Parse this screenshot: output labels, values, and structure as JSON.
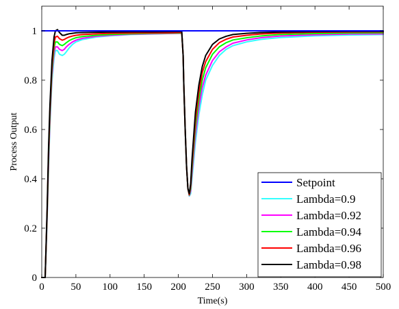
{
  "chart_data": {
    "type": "line",
    "title": "",
    "xlabel": "Time(s)",
    "ylabel": "Process Output",
    "xlim": [
      0,
      500
    ],
    "ylim": [
      0,
      1.1
    ],
    "xticks": [
      0,
      50,
      100,
      150,
      200,
      250,
      300,
      350,
      400,
      450,
      500
    ],
    "yticks": [
      0,
      0.2,
      0.4,
      0.6,
      0.8,
      1
    ],
    "xtick_labels": [
      "0",
      "50",
      "100",
      "150",
      "200",
      "250",
      "300",
      "350",
      "400",
      "450",
      "500"
    ],
    "ytick_labels": [
      "0",
      "0.2",
      "0.4",
      "0.6",
      "0.8",
      "1"
    ],
    "grid": false,
    "legend_position": "bottom-right",
    "series": [
      {
        "name": "Setpoint",
        "color": "#0000FF",
        "x": [
          0,
          500
        ],
        "y": [
          1.0,
          1.0
        ]
      },
      {
        "name": "Lambda=0.9",
        "color": "#33FFFF",
        "x": [
          0,
          5,
          8,
          10,
          12,
          15,
          18,
          20,
          23,
          26,
          30,
          33,
          36,
          40,
          45,
          50,
          60,
          80,
          100,
          130,
          160,
          200,
          205,
          207,
          208,
          210,
          212,
          214,
          216,
          218,
          220,
          225,
          230,
          235,
          240,
          250,
          260,
          270,
          280,
          300,
          320,
          350,
          400,
          450,
          500
        ],
        "y": [
          0,
          0,
          0.25,
          0.45,
          0.62,
          0.8,
          0.89,
          0.92,
          0.92,
          0.905,
          0.9,
          0.905,
          0.915,
          0.93,
          0.945,
          0.955,
          0.965,
          0.975,
          0.98,
          0.985,
          0.987,
          0.99,
          0.99,
          0.9,
          0.78,
          0.6,
          0.45,
          0.36,
          0.33,
          0.34,
          0.4,
          0.55,
          0.66,
          0.74,
          0.8,
          0.86,
          0.9,
          0.925,
          0.94,
          0.955,
          0.965,
          0.973,
          0.98,
          0.983,
          0.985
        ]
      },
      {
        "name": "Lambda=0.92",
        "color": "#FF00FF",
        "x": [
          0,
          5,
          8,
          10,
          12,
          15,
          18,
          20,
          23,
          26,
          30,
          33,
          36,
          40,
          45,
          50,
          60,
          80,
          100,
          130,
          160,
          200,
          205,
          207,
          208,
          210,
          212,
          214,
          216,
          218,
          220,
          225,
          230,
          235,
          240,
          250,
          260,
          270,
          280,
          300,
          320,
          350,
          400,
          450,
          500
        ],
        "y": [
          0,
          0,
          0.26,
          0.47,
          0.64,
          0.82,
          0.91,
          0.935,
          0.935,
          0.925,
          0.92,
          0.925,
          0.935,
          0.945,
          0.955,
          0.962,
          0.97,
          0.978,
          0.982,
          0.986,
          0.988,
          0.99,
          0.99,
          0.9,
          0.78,
          0.6,
          0.45,
          0.36,
          0.332,
          0.35,
          0.42,
          0.58,
          0.69,
          0.77,
          0.82,
          0.88,
          0.915,
          0.935,
          0.95,
          0.963,
          0.972,
          0.979,
          0.984,
          0.987,
          0.988
        ]
      },
      {
        "name": "Lambda=0.94",
        "color": "#00FF00",
        "x": [
          0,
          5,
          8,
          10,
          12,
          15,
          18,
          20,
          23,
          26,
          30,
          33,
          36,
          40,
          45,
          50,
          60,
          80,
          100,
          130,
          160,
          200,
          205,
          207,
          208,
          210,
          212,
          214,
          216,
          218,
          220,
          225,
          230,
          235,
          240,
          250,
          260,
          270,
          280,
          300,
          320,
          350,
          400,
          450,
          500
        ],
        "y": [
          0,
          0,
          0.27,
          0.49,
          0.66,
          0.84,
          0.93,
          0.955,
          0.955,
          0.945,
          0.94,
          0.945,
          0.952,
          0.96,
          0.967,
          0.972,
          0.977,
          0.982,
          0.985,
          0.988,
          0.99,
          0.991,
          0.991,
          0.9,
          0.78,
          0.6,
          0.45,
          0.36,
          0.334,
          0.36,
          0.44,
          0.61,
          0.72,
          0.8,
          0.85,
          0.905,
          0.935,
          0.952,
          0.963,
          0.972,
          0.979,
          0.985,
          0.989,
          0.991,
          0.992
        ]
      },
      {
        "name": "Lambda=0.96",
        "color": "#FF0000",
        "x": [
          0,
          5,
          8,
          10,
          12,
          15,
          18,
          20,
          23,
          26,
          30,
          33,
          36,
          40,
          45,
          50,
          60,
          80,
          100,
          130,
          160,
          200,
          205,
          207,
          208,
          210,
          212,
          214,
          216,
          218,
          220,
          225,
          230,
          235,
          240,
          250,
          260,
          270,
          280,
          300,
          320,
          350,
          400,
          450,
          500
        ],
        "y": [
          0,
          0,
          0.28,
          0.51,
          0.68,
          0.86,
          0.95,
          0.975,
          0.978,
          0.968,
          0.962,
          0.965,
          0.97,
          0.975,
          0.979,
          0.982,
          0.985,
          0.988,
          0.99,
          0.991,
          0.992,
          0.993,
          0.993,
          0.9,
          0.78,
          0.6,
          0.45,
          0.36,
          0.336,
          0.37,
          0.46,
          0.64,
          0.75,
          0.83,
          0.875,
          0.925,
          0.952,
          0.966,
          0.975,
          0.982,
          0.987,
          0.991,
          0.994,
          0.995,
          0.996
        ]
      },
      {
        "name": "Lambda=0.98",
        "color": "#000000",
        "x": [
          0,
          5,
          8,
          10,
          12,
          15,
          18,
          20,
          23,
          26,
          30,
          33,
          36,
          40,
          45,
          50,
          60,
          80,
          100,
          130,
          160,
          200,
          205,
          207,
          208,
          210,
          212,
          214,
          216,
          218,
          220,
          225,
          230,
          235,
          240,
          250,
          260,
          270,
          280,
          300,
          320,
          350,
          400,
          450,
          500
        ],
        "y": [
          0,
          0,
          0.29,
          0.53,
          0.7,
          0.88,
          0.975,
          1.0,
          1.005,
          0.993,
          0.982,
          0.982,
          0.985,
          0.988,
          0.99,
          0.992,
          0.993,
          0.994,
          0.995,
          0.996,
          0.996,
          0.997,
          0.997,
          0.9,
          0.78,
          0.6,
          0.45,
          0.36,
          0.34,
          0.38,
          0.48,
          0.67,
          0.78,
          0.855,
          0.9,
          0.945,
          0.967,
          0.978,
          0.985,
          0.99,
          0.993,
          0.995,
          0.997,
          0.998,
          0.998
        ]
      }
    ]
  }
}
